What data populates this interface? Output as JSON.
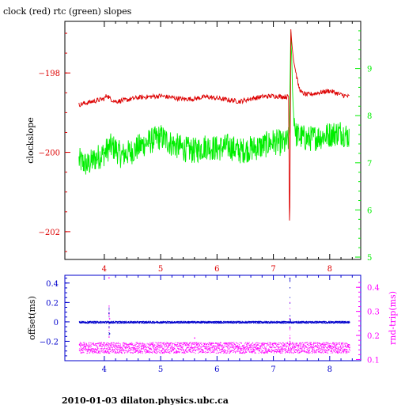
{
  "title": "clock (red) rtc (green) slopes",
  "footer": "2010-01-03  dilaton.physics.ubc.ca",
  "colors": {
    "clock": "#dd0000",
    "rtc": "#00ee00",
    "offset": "#0000cc",
    "rndtrip": "#ff00ff",
    "axis": "#000000"
  },
  "chart_data": [
    {
      "type": "line",
      "title": "clock (red) rtc (green) slopes",
      "ylabel": "clockslope",
      "y2label": "",
      "xlim": [
        3.3,
        8.55
      ],
      "ylim": [
        -202.7,
        -196.7
      ],
      "y2lim": [
        4.95,
        10.0
      ],
      "xticks": [
        4,
        5,
        6,
        7,
        8
      ],
      "yticks": [
        -198,
        -200,
        -202
      ],
      "y2ticks": [
        5,
        6,
        7,
        8,
        9
      ],
      "series": [
        {
          "axis": "left",
          "x": [
            3.55,
            3.7,
            3.85,
            4.0,
            4.05,
            4.1,
            4.2,
            4.4,
            4.6,
            4.8,
            5.0,
            5.2,
            5.4,
            5.6,
            5.8,
            6.0,
            6.2,
            6.4,
            6.6,
            6.8,
            7.0,
            7.2,
            7.27,
            7.29,
            7.31,
            7.33,
            7.36,
            7.4,
            7.45,
            7.5,
            7.6,
            7.8,
            8.0,
            8.2,
            8.35
          ],
          "y": [
            -198.8,
            -198.75,
            -198.7,
            -198.65,
            -198.55,
            -198.65,
            -198.72,
            -198.68,
            -198.62,
            -198.6,
            -198.58,
            -198.62,
            -198.66,
            -198.65,
            -198.6,
            -198.64,
            -198.68,
            -198.72,
            -198.65,
            -198.6,
            -198.58,
            -198.6,
            -198.6,
            -202.5,
            -196.9,
            -197.3,
            -197.7,
            -198.0,
            -198.35,
            -198.5,
            -198.55,
            -198.5,
            -198.45,
            -198.55,
            -198.6
          ]
        },
        {
          "axis": "right",
          "x": [
            3.55,
            3.7,
            3.85,
            4.0,
            4.1,
            4.2,
            4.3,
            4.5,
            4.7,
            4.9,
            5.0,
            5.2,
            5.4,
            5.6,
            5.8,
            6.0,
            6.2,
            6.4,
            6.6,
            6.8,
            7.0,
            7.2,
            7.28,
            7.31,
            7.35,
            7.4,
            7.5,
            7.6,
            7.8,
            8.0,
            8.2,
            8.35
          ],
          "y": [
            7.05,
            6.95,
            7.1,
            7.2,
            7.35,
            7.3,
            7.15,
            7.25,
            7.4,
            7.5,
            7.55,
            7.4,
            7.3,
            7.25,
            7.35,
            7.3,
            7.35,
            7.25,
            7.3,
            7.35,
            7.45,
            7.4,
            7.5,
            9.8,
            8.2,
            7.6,
            7.55,
            7.5,
            7.55,
            7.6,
            7.65,
            7.55
          ]
        }
      ]
    },
    {
      "type": "scatter",
      "ylabel": "offset(ms)",
      "y2label": "rnd-trip(ms)",
      "xlim": [
        3.3,
        8.55
      ],
      "ylim": [
        -0.4,
        0.48
      ],
      "y2lim": [
        0.095,
        0.45
      ],
      "xticks": [
        4,
        5,
        6,
        7,
        8
      ],
      "yticks": [
        0.4,
        0.2,
        0,
        -0.2
      ],
      "y2ticks": [
        0.4,
        0.3,
        0.2,
        0.1
      ],
      "series": [
        {
          "axis": "left",
          "level": 0.0,
          "spikes": [
            {
              "x": 4.08,
              "y": 0.09
            },
            {
              "x": 4.09,
              "y": -0.12
            },
            {
              "x": 7.29,
              "y": 0.45
            },
            {
              "x": 7.3,
              "y": 0.02
            }
          ]
        },
        {
          "axis": "right",
          "level": 0.15,
          "spikes": [
            {
              "x": 4.08,
              "y": 0.44
            },
            {
              "x": 4.09,
              "y": 0.27
            },
            {
              "x": 5.6,
              "y": 0.19
            },
            {
              "x": 7.29,
              "y": 0.27
            }
          ]
        }
      ]
    }
  ]
}
